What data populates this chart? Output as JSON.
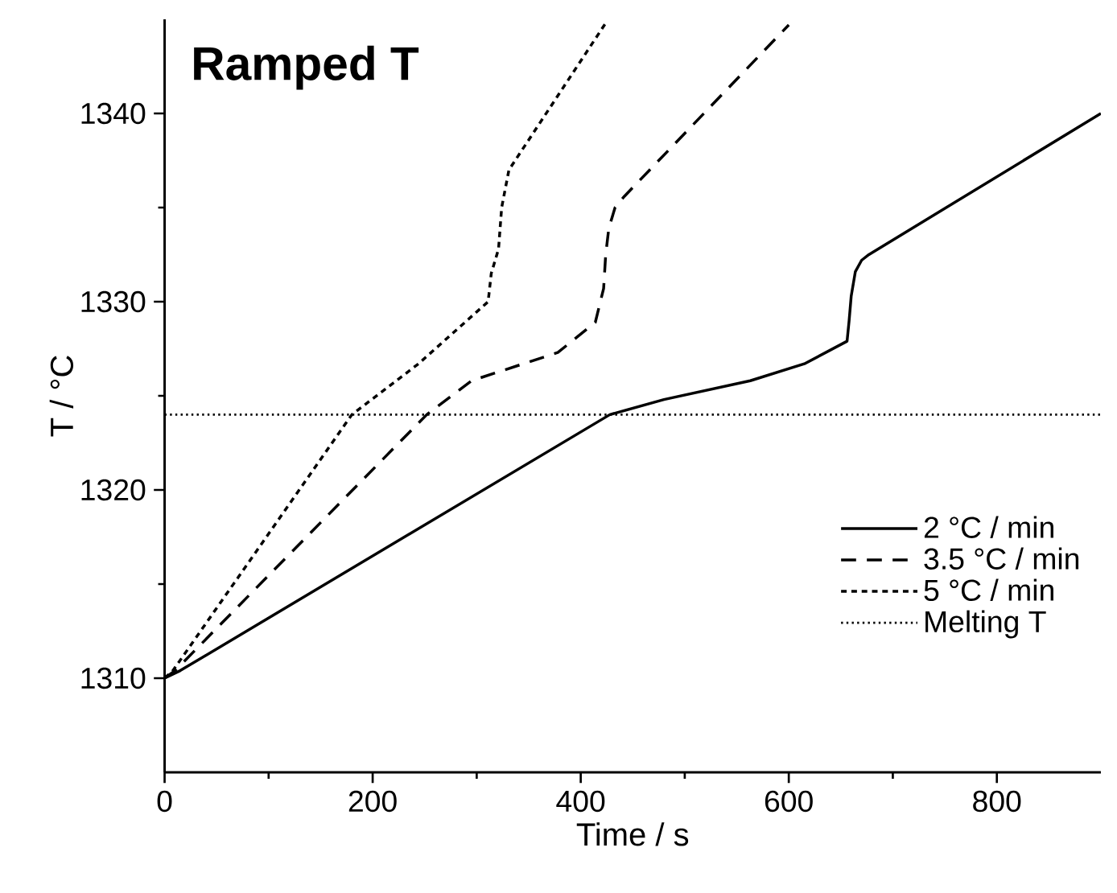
{
  "chart_data": {
    "type": "line",
    "title": "Ramped T",
    "xlabel": "Time / s",
    "ylabel": "T / °C",
    "xlim": [
      0,
      900
    ],
    "ylim": [
      1305,
      1345
    ],
    "xticks": [
      0,
      200,
      400,
      600,
      800
    ],
    "yticks": [
      1310,
      1320,
      1330,
      1340
    ],
    "legend": "bottom right",
    "series": [
      {
        "name": "2 °C / min",
        "color": "#000000",
        "line_style": "solid",
        "x": [
          0,
          15,
          428,
          480,
          563,
          615,
          656,
          658,
          660,
          664,
          670,
          677,
          900
        ],
        "values": [
          1310,
          1310.4,
          1324,
          1324.8,
          1325.8,
          1326.7,
          1327.9,
          1329,
          1330.3,
          1331.6,
          1332.2,
          1332.5,
          1340
        ]
      },
      {
        "name": "3.5 °C / min",
        "color": "#000000",
        "line_style": "dashed",
        "x": [
          0,
          10,
          252,
          295,
          378,
          414,
          418,
          422,
          424,
          427,
          433,
          442,
          600
        ],
        "values": [
          1310,
          1310.4,
          1324,
          1325.8,
          1327.3,
          1328.9,
          1329.8,
          1330.7,
          1332.5,
          1333.9,
          1335,
          1335.6,
          1344.7
        ]
      },
      {
        "name": "5 °C / min",
        "color": "#000000",
        "line_style": "dotted",
        "x": [
          0,
          8,
          180,
          244,
          311,
          314,
          321,
          324,
          331,
          424
        ],
        "values": [
          1310,
          1310.4,
          1324,
          1326.7,
          1330,
          1331.5,
          1332.8,
          1335,
          1337,
          1344.8
        ]
      }
    ],
    "ref_lines": [
      {
        "axis": "y",
        "value": 1324,
        "label": "Melting T",
        "line_style": "dotted",
        "color": "#000000"
      }
    ]
  }
}
